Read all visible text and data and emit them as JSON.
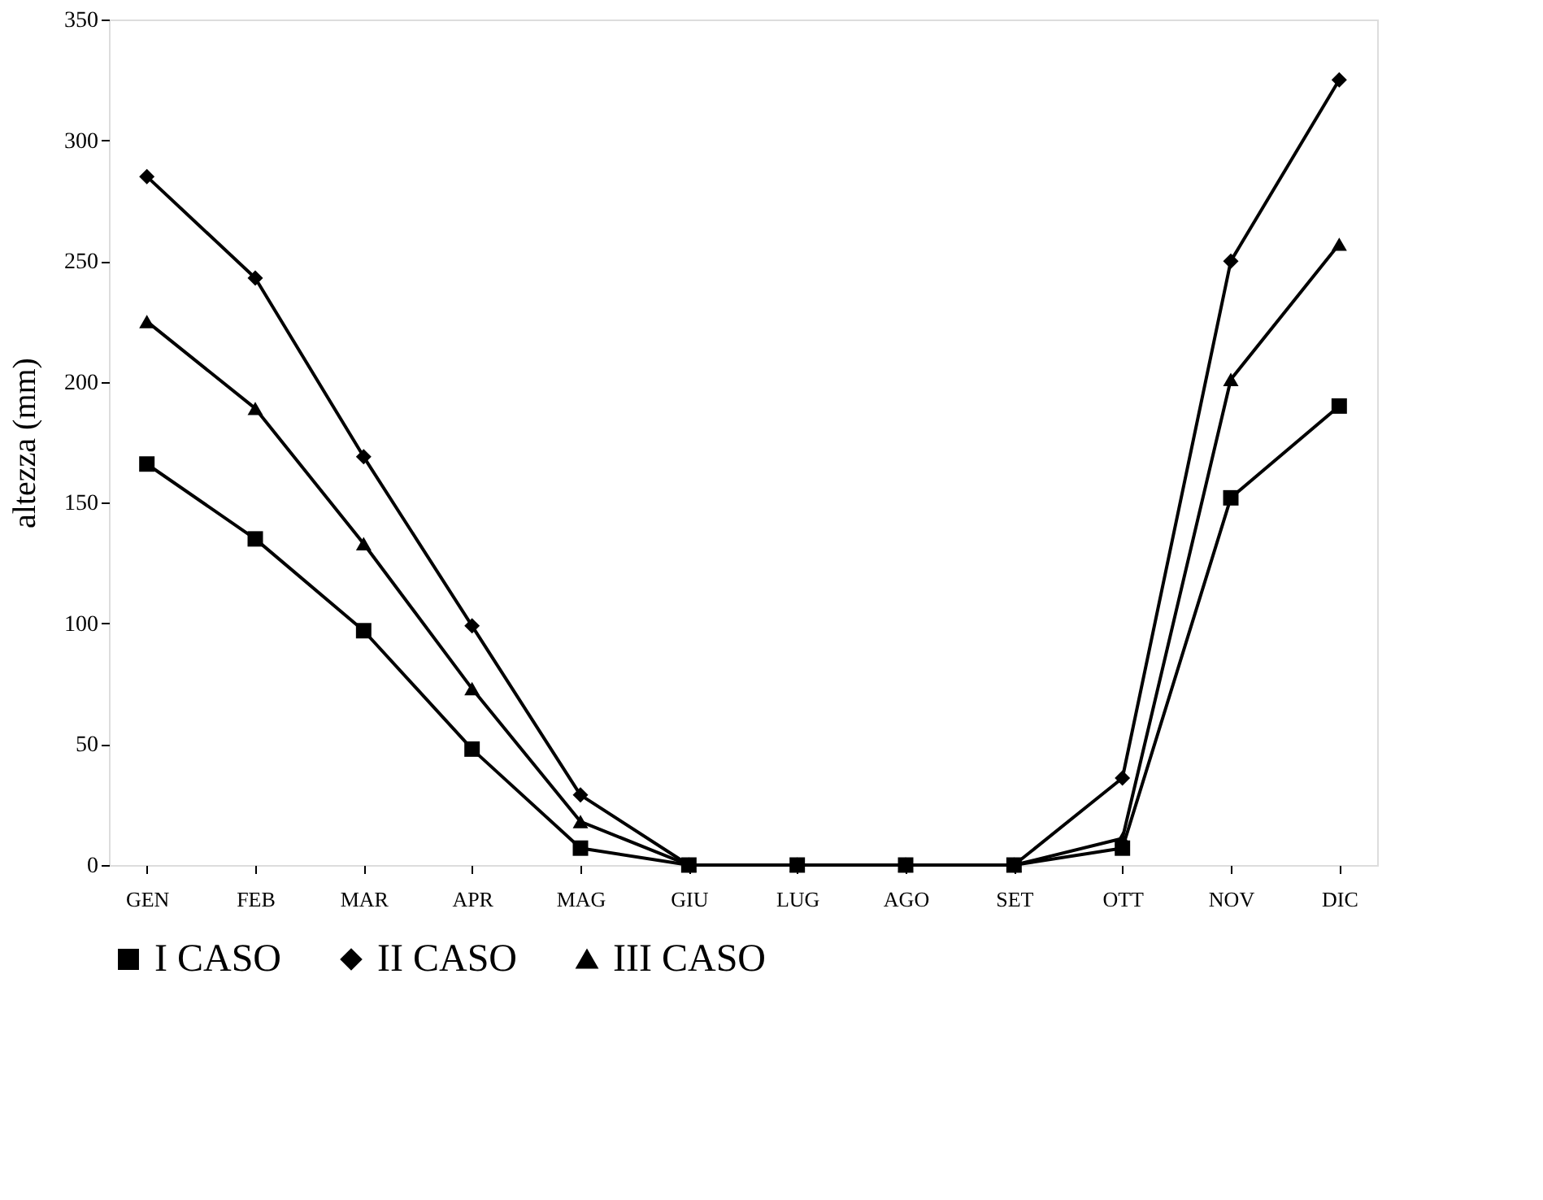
{
  "chart_data": {
    "type": "line",
    "ylabel": "altezza (mm)",
    "categories": [
      "GEN",
      "FEB",
      "MAR",
      "APR",
      "MAG",
      "GIU",
      "LUG",
      "AGO",
      "SET",
      "OTT",
      "NOV",
      "DIC"
    ],
    "series": [
      {
        "name": "I CASO",
        "color": "#000000",
        "marker": "square",
        "values": [
          166,
          135,
          97,
          48,
          7,
          0,
          0,
          0,
          0,
          7,
          152,
          190
        ]
      },
      {
        "name": "II CASO",
        "color": "#000000",
        "marker": "diamond",
        "values": [
          285,
          243,
          169,
          99,
          29,
          0,
          0,
          0,
          0,
          36,
          250,
          325
        ]
      },
      {
        "name": "III CASO",
        "color": "#000000",
        "marker": "triangle",
        "values": [
          225,
          189,
          133,
          73,
          18,
          0,
          0,
          0,
          0,
          11,
          201,
          257
        ]
      }
    ],
    "ylim": [
      0,
      350
    ],
    "yticks": [
      0,
      50,
      100,
      150,
      200,
      250,
      300,
      350
    ],
    "grid": false,
    "legend": "bottom",
    "line_style": "solid"
  }
}
